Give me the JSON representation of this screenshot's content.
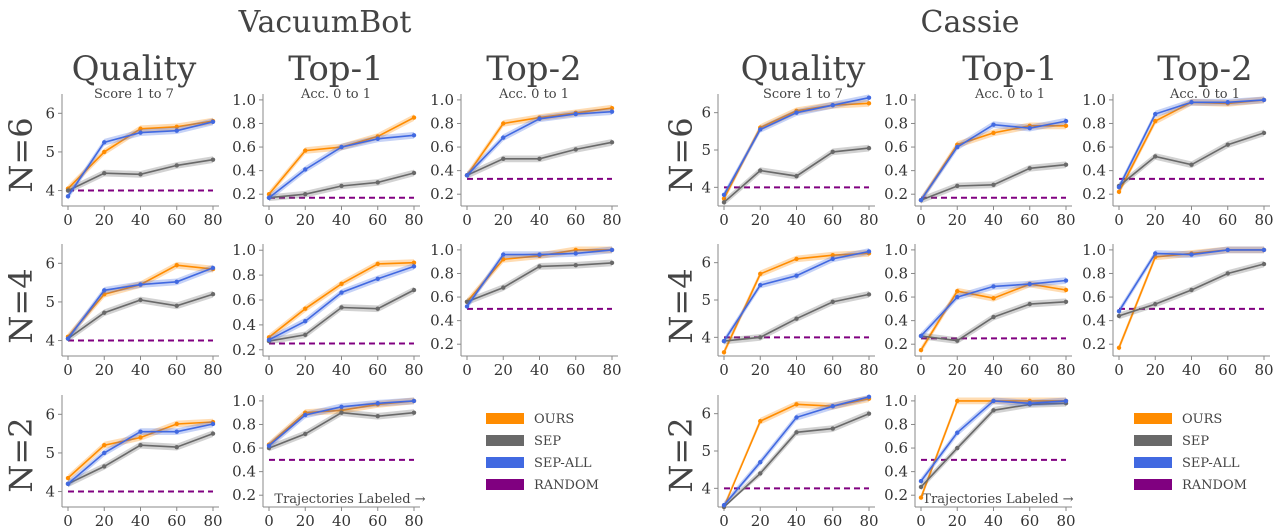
{
  "groups": [
    {
      "title": "VacuumBot"
    },
    {
      "title": "Cassie"
    }
  ],
  "columns": [
    {
      "title": "Quality",
      "subtitle": "Score 1 to 7"
    },
    {
      "title": "Top-1",
      "subtitle": "Acc. 0 to 1"
    },
    {
      "title": "Top-2",
      "subtitle": "Acc. 0 to 1"
    }
  ],
  "rows": [
    {
      "label": "N=6"
    },
    {
      "label": "N=4"
    },
    {
      "label": "N=2"
    }
  ],
  "xlabel_note": "Trajectories Labeled →",
  "legend": [
    {
      "label": "OURS",
      "color": "#ff8c00"
    },
    {
      "label": "SEP",
      "color": "#696969"
    },
    {
      "label": "SEP-ALL",
      "color": "#4169e1"
    },
    {
      "label": "RANDOM",
      "color": "#800080"
    }
  ],
  "chart_data": [
    {
      "type": "line",
      "group": "VacuumBot",
      "metric": "Quality",
      "N": 6,
      "x": [
        0,
        20,
        40,
        60,
        80
      ],
      "yticks": [
        4,
        5,
        6
      ],
      "xticks": [
        0,
        20,
        40,
        60,
        80
      ],
      "ylim": [
        3.6,
        6.5
      ],
      "random": 4,
      "series": [
        {
          "name": "OURS",
          "values": [
            4.05,
            5.0,
            5.6,
            5.65,
            5.8
          ]
        },
        {
          "name": "SEP",
          "values": [
            4.0,
            4.45,
            4.42,
            4.65,
            4.8
          ]
        },
        {
          "name": "SEP-ALL",
          "values": [
            3.85,
            5.25,
            5.5,
            5.55,
            5.78
          ]
        },
        {
          "name": "RANDOM",
          "values": [
            4,
            4,
            4,
            4,
            4
          ]
        }
      ]
    },
    {
      "type": "line",
      "group": "VacuumBot",
      "metric": "Top-1",
      "N": 6,
      "x": [
        0,
        20,
        40,
        60,
        80
      ],
      "yticks": [
        0.2,
        0.4,
        0.6,
        0.8,
        1.0
      ],
      "xticks": [
        0,
        20,
        40,
        60,
        80
      ],
      "ylim": [
        0.1,
        1.05
      ],
      "random": 0.17,
      "series": [
        {
          "name": "OURS",
          "values": [
            0.2,
            0.57,
            0.6,
            0.69,
            0.85
          ]
        },
        {
          "name": "SEP",
          "values": [
            0.17,
            0.2,
            0.27,
            0.3,
            0.38
          ]
        },
        {
          "name": "SEP-ALL",
          "values": [
            0.17,
            0.41,
            0.6,
            0.67,
            0.7
          ]
        },
        {
          "name": "RANDOM",
          "values": [
            0.17,
            0.17,
            0.17,
            0.17,
            0.17
          ]
        }
      ]
    },
    {
      "type": "line",
      "group": "VacuumBot",
      "metric": "Top-2",
      "N": 6,
      "x": [
        0,
        20,
        40,
        60,
        80
      ],
      "yticks": [
        0.2,
        0.4,
        0.6,
        0.8,
        1.0
      ],
      "xticks": [
        0,
        20,
        40,
        60,
        80
      ],
      "ylim": [
        0.1,
        1.05
      ],
      "random": 0.33,
      "series": [
        {
          "name": "OURS",
          "values": [
            0.36,
            0.8,
            0.85,
            0.89,
            0.93
          ]
        },
        {
          "name": "SEP",
          "values": [
            0.36,
            0.5,
            0.5,
            0.58,
            0.64
          ]
        },
        {
          "name": "SEP-ALL",
          "values": [
            0.36,
            0.68,
            0.84,
            0.88,
            0.9
          ]
        },
        {
          "name": "RANDOM",
          "values": [
            0.33,
            0.33,
            0.33,
            0.33,
            0.33
          ]
        }
      ]
    },
    {
      "type": "line",
      "group": "Cassie",
      "metric": "Quality",
      "N": 6,
      "x": [
        0,
        20,
        40,
        60,
        80
      ],
      "yticks": [
        4,
        5,
        6
      ],
      "xticks": [
        0,
        20,
        40,
        60,
        80
      ],
      "ylim": [
        3.5,
        6.5
      ],
      "random": 4,
      "series": [
        {
          "name": "OURS",
          "values": [
            3.7,
            5.6,
            6.05,
            6.2,
            6.25
          ]
        },
        {
          "name": "SEP",
          "values": [
            3.6,
            4.45,
            4.3,
            4.95,
            5.05
          ]
        },
        {
          "name": "SEP-ALL",
          "values": [
            3.8,
            5.55,
            6.0,
            6.2,
            6.4
          ]
        },
        {
          "name": "RANDOM",
          "values": [
            4,
            4,
            4,
            4,
            4
          ]
        }
      ]
    },
    {
      "type": "line",
      "group": "Cassie",
      "metric": "Top-1",
      "N": 6,
      "x": [
        0,
        20,
        40,
        60,
        80
      ],
      "yticks": [
        0.2,
        0.4,
        0.6,
        0.8,
        1.0
      ],
      "xticks": [
        0,
        20,
        40,
        60,
        80
      ],
      "ylim": [
        0.1,
        1.05
      ],
      "random": 0.17,
      "series": [
        {
          "name": "OURS",
          "values": [
            0.15,
            0.62,
            0.72,
            0.78,
            0.78
          ]
        },
        {
          "name": "SEP",
          "values": [
            0.15,
            0.27,
            0.28,
            0.42,
            0.45
          ]
        },
        {
          "name": "SEP-ALL",
          "values": [
            0.15,
            0.6,
            0.79,
            0.76,
            0.82
          ]
        },
        {
          "name": "RANDOM",
          "values": [
            0.17,
            0.17,
            0.17,
            0.17,
            0.17
          ]
        }
      ]
    },
    {
      "type": "line",
      "group": "Cassie",
      "metric": "Top-2",
      "N": 6,
      "x": [
        0,
        20,
        40,
        60,
        80
      ],
      "yticks": [
        0.2,
        0.4,
        0.6,
        0.8,
        1.0
      ],
      "xticks": [
        0,
        20,
        40,
        60,
        80
      ],
      "ylim": [
        0.1,
        1.05
      ],
      "random": 0.33,
      "series": [
        {
          "name": "OURS",
          "values": [
            0.22,
            0.82,
            0.98,
            0.97,
            1.0
          ]
        },
        {
          "name": "SEP",
          "values": [
            0.27,
            0.52,
            0.45,
            0.62,
            0.72
          ]
        },
        {
          "name": "SEP-ALL",
          "values": [
            0.26,
            0.88,
            0.98,
            0.98,
            1.0
          ]
        },
        {
          "name": "RANDOM",
          "values": [
            0.33,
            0.33,
            0.33,
            0.33,
            0.33
          ]
        }
      ]
    },
    {
      "type": "line",
      "group": "VacuumBot",
      "metric": "Quality",
      "N": 4,
      "x": [
        0,
        20,
        40,
        60,
        80
      ],
      "yticks": [
        4,
        5,
        6
      ],
      "xticks": [
        0,
        20,
        40,
        60,
        80
      ],
      "ylim": [
        3.6,
        6.5
      ],
      "random": 4,
      "series": [
        {
          "name": "OURS",
          "values": [
            4.1,
            5.2,
            5.45,
            5.95,
            5.85
          ]
        },
        {
          "name": "SEP",
          "values": [
            4.05,
            4.72,
            5.05,
            4.9,
            5.2
          ]
        },
        {
          "name": "SEP-ALL",
          "values": [
            4.05,
            5.3,
            5.45,
            5.52,
            5.88
          ]
        },
        {
          "name": "RANDOM",
          "values": [
            4,
            4,
            4,
            4,
            4
          ]
        }
      ]
    },
    {
      "type": "line",
      "group": "VacuumBot",
      "metric": "Top-1",
      "N": 4,
      "x": [
        0,
        20,
        40,
        60,
        80
      ],
      "yticks": [
        0.2,
        0.4,
        0.6,
        0.8,
        1.0
      ],
      "xticks": [
        0,
        20,
        40,
        60,
        80
      ],
      "ylim": [
        0.15,
        1.05
      ],
      "random": 0.25,
      "series": [
        {
          "name": "OURS",
          "values": [
            0.3,
            0.53,
            0.73,
            0.89,
            0.9
          ]
        },
        {
          "name": "SEP",
          "values": [
            0.27,
            0.32,
            0.54,
            0.53,
            0.68
          ]
        },
        {
          "name": "SEP-ALL",
          "values": [
            0.28,
            0.43,
            0.66,
            0.77,
            0.87
          ]
        },
        {
          "name": "RANDOM",
          "values": [
            0.25,
            0.25,
            0.25,
            0.25,
            0.25
          ]
        }
      ]
    },
    {
      "type": "line",
      "group": "VacuumBot",
      "metric": "Top-2",
      "N": 4,
      "x": [
        0,
        20,
        40,
        60,
        80
      ],
      "yticks": [
        0.2,
        0.4,
        0.6,
        0.8,
        1.0
      ],
      "xticks": [
        0,
        20,
        40,
        60,
        80
      ],
      "ylim": [
        0.1,
        1.05
      ],
      "random": 0.5,
      "series": [
        {
          "name": "OURS",
          "values": [
            0.56,
            0.92,
            0.95,
            1.0,
            1.0
          ]
        },
        {
          "name": "SEP",
          "values": [
            0.56,
            0.68,
            0.86,
            0.87,
            0.89
          ]
        },
        {
          "name": "SEP-ALL",
          "values": [
            0.52,
            0.96,
            0.96,
            0.97,
            1.0
          ]
        },
        {
          "name": "RANDOM",
          "values": [
            0.5,
            0.5,
            0.5,
            0.5,
            0.5
          ]
        }
      ]
    },
    {
      "type": "line",
      "group": "Cassie",
      "metric": "Quality",
      "N": 4,
      "x": [
        0,
        20,
        40,
        60,
        80
      ],
      "yticks": [
        4,
        5,
        6
      ],
      "xticks": [
        0,
        20,
        40,
        60,
        80
      ],
      "ylim": [
        3.5,
        6.5
      ],
      "random": 4,
      "series": [
        {
          "name": "OURS",
          "values": [
            3.6,
            5.7,
            6.1,
            6.2,
            6.25
          ]
        },
        {
          "name": "SEP",
          "values": [
            3.9,
            4.0,
            4.5,
            4.95,
            5.15
          ]
        },
        {
          "name": "SEP-ALL",
          "values": [
            3.9,
            5.4,
            5.65,
            6.1,
            6.3
          ]
        },
        {
          "name": "RANDOM",
          "values": [
            4,
            4,
            4,
            4,
            4
          ]
        }
      ]
    },
    {
      "type": "line",
      "group": "Cassie",
      "metric": "Top-1",
      "N": 4,
      "x": [
        0,
        20,
        40,
        60,
        80
      ],
      "yticks": [
        0.2,
        0.4,
        0.6,
        0.8,
        1.0
      ],
      "xticks": [
        0,
        20,
        40,
        60,
        80
      ],
      "ylim": [
        0.1,
        1.05
      ],
      "random": 0.25,
      "series": [
        {
          "name": "OURS",
          "values": [
            0.15,
            0.65,
            0.59,
            0.71,
            0.66
          ]
        },
        {
          "name": "SEP",
          "values": [
            0.27,
            0.23,
            0.43,
            0.54,
            0.56
          ]
        },
        {
          "name": "SEP-ALL",
          "values": [
            0.27,
            0.6,
            0.69,
            0.71,
            0.74
          ]
        },
        {
          "name": "RANDOM",
          "values": [
            0.25,
            0.25,
            0.25,
            0.25,
            0.25
          ]
        }
      ]
    },
    {
      "type": "line",
      "group": "Cassie",
      "metric": "Top-2",
      "N": 4,
      "x": [
        0,
        20,
        40,
        60,
        80
      ],
      "yticks": [
        0.2,
        0.4,
        0.6,
        0.8,
        1.0
      ],
      "xticks": [
        0,
        20,
        40,
        60,
        80
      ],
      "ylim": [
        0.1,
        1.05
      ],
      "random": 0.5,
      "series": [
        {
          "name": "OURS",
          "values": [
            0.17,
            0.94,
            0.97,
            1.0,
            1.0
          ]
        },
        {
          "name": "SEP",
          "values": [
            0.44,
            0.54,
            0.66,
            0.8,
            0.88
          ]
        },
        {
          "name": "SEP-ALL",
          "values": [
            0.48,
            0.97,
            0.96,
            1.0,
            1.0
          ]
        },
        {
          "name": "RANDOM",
          "values": [
            0.5,
            0.5,
            0.5,
            0.5,
            0.5
          ]
        }
      ]
    },
    {
      "type": "line",
      "group": "VacuumBot",
      "metric": "Quality",
      "N": 2,
      "x": [
        0,
        20,
        40,
        60,
        80
      ],
      "yticks": [
        4,
        5,
        6
      ],
      "xticks": [
        0,
        20,
        40,
        60,
        80
      ],
      "ylim": [
        3.6,
        6.5
      ],
      "random": 4,
      "series": [
        {
          "name": "OURS",
          "values": [
            4.35,
            5.2,
            5.4,
            5.75,
            5.8
          ]
        },
        {
          "name": "SEP",
          "values": [
            4.2,
            4.65,
            5.2,
            5.15,
            5.5
          ]
        },
        {
          "name": "SEP-ALL",
          "values": [
            4.2,
            5.0,
            5.55,
            5.55,
            5.75
          ]
        },
        {
          "name": "RANDOM",
          "values": [
            4,
            4,
            4,
            4,
            4
          ]
        }
      ]
    },
    {
      "type": "line",
      "group": "VacuumBot",
      "metric": "Top-1",
      "N": 2,
      "x": [
        0,
        20,
        40,
        60,
        80
      ],
      "yticks": [
        0.2,
        0.4,
        0.6,
        0.8,
        1.0
      ],
      "xticks": [
        0,
        20,
        40,
        60,
        80
      ],
      "ylim": [
        0.1,
        1.05
      ],
      "random": 0.5,
      "series": [
        {
          "name": "OURS",
          "values": [
            0.63,
            0.9,
            0.92,
            0.97,
            1.0
          ]
        },
        {
          "name": "SEP",
          "values": [
            0.6,
            0.72,
            0.9,
            0.87,
            0.9
          ]
        },
        {
          "name": "SEP-ALL",
          "values": [
            0.62,
            0.88,
            0.95,
            0.98,
            1.0
          ]
        },
        {
          "name": "RANDOM",
          "values": [
            0.5,
            0.5,
            0.5,
            0.5,
            0.5
          ]
        }
      ]
    },
    {
      "type": "line",
      "group": "Cassie",
      "metric": "Quality",
      "N": 2,
      "x": [
        0,
        20,
        40,
        60,
        80
      ],
      "yticks": [
        4,
        5,
        6
      ],
      "xticks": [
        0,
        20,
        40,
        60,
        80
      ],
      "ylim": [
        3.5,
        6.5
      ],
      "random": 4,
      "series": [
        {
          "name": "OURS",
          "values": [
            3.5,
            5.8,
            6.25,
            6.2,
            6.4
          ]
        },
        {
          "name": "SEP",
          "values": [
            3.5,
            4.4,
            5.5,
            5.6,
            6.0
          ]
        },
        {
          "name": "SEP-ALL",
          "values": [
            3.55,
            4.7,
            5.9,
            6.2,
            6.45
          ]
        },
        {
          "name": "RANDOM",
          "values": [
            4,
            4,
            4,
            4,
            4
          ]
        }
      ]
    },
    {
      "type": "line",
      "group": "Cassie",
      "metric": "Top-1",
      "N": 2,
      "x": [
        0,
        20,
        40,
        60,
        80
      ],
      "yticks": [
        0.2,
        0.4,
        0.6,
        0.8,
        1.0
      ],
      "xticks": [
        0,
        20,
        40,
        60,
        80
      ],
      "ylim": [
        0.1,
        1.05
      ],
      "random": 0.5,
      "series": [
        {
          "name": "OURS",
          "values": [
            0.18,
            1.0,
            1.0,
            1.0,
            1.0
          ]
        },
        {
          "name": "SEP",
          "values": [
            0.27,
            0.6,
            0.92,
            0.97,
            0.98
          ]
        },
        {
          "name": "SEP-ALL",
          "values": [
            0.32,
            0.73,
            1.0,
            0.98,
            1.0
          ]
        },
        {
          "name": "RANDOM",
          "values": [
            0.5,
            0.5,
            0.5,
            0.5,
            0.5
          ]
        }
      ]
    }
  ]
}
